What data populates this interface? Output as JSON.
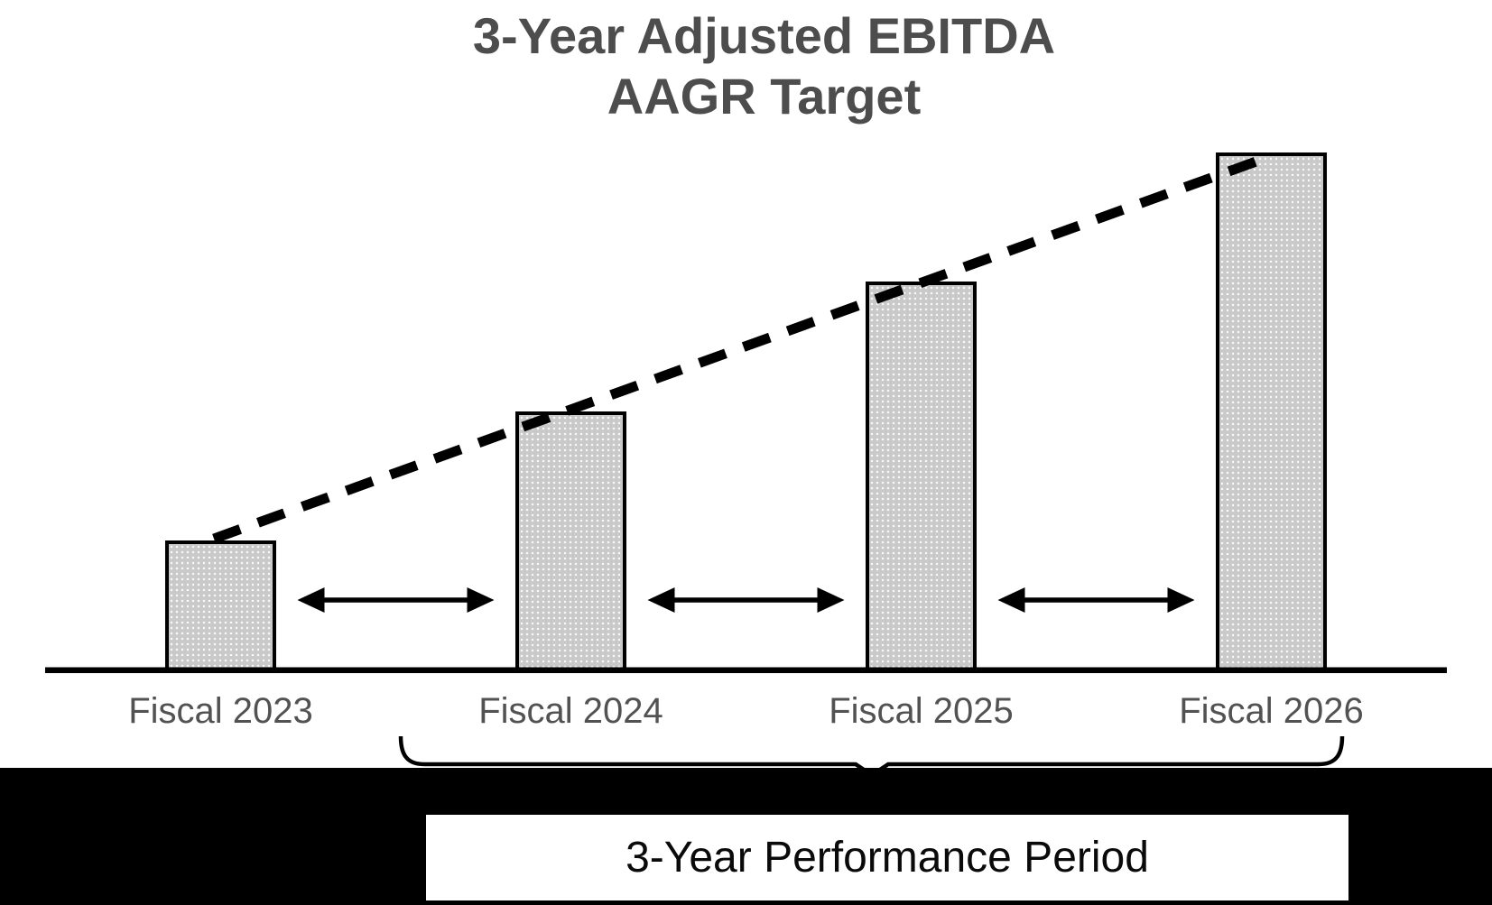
{
  "title": {
    "line1": "3-Year Adjusted EBITDA",
    "line2": "AAGR Target"
  },
  "footer": {
    "performance_period_label": "3-Year Performance Period"
  },
  "chart_data": {
    "type": "bar",
    "title": "3-Year Adjusted EBITDA AAGR Target",
    "categories": [
      "Fiscal 2023",
      "Fiscal 2024",
      "Fiscal 2025",
      "Fiscal 2026"
    ],
    "values": [
      1,
      2,
      3,
      4
    ],
    "units": "relative bar height (schematic chart, no numeric axis shown)",
    "xlabel": "",
    "ylabel": "",
    "grid": false,
    "legend": false,
    "annotations": {
      "trend_line": {
        "style": "dashed",
        "from_bar": "Fiscal 2023",
        "to_bar": "Fiscal 2026",
        "meaning": "AAGR growth trajectory across bar tops"
      },
      "year_gap_arrows": [
        "Fiscal 2023 ↔ Fiscal 2024",
        "Fiscal 2024 ↔ Fiscal 2025",
        "Fiscal 2025 ↔ Fiscal 2026"
      ],
      "bracket": {
        "label": "3-Year Performance Period",
        "spans": "Fiscal 2024 – Fiscal 2026"
      }
    }
  },
  "colors": {
    "bar_fill": "#c9c9c9",
    "bar_border": "#000000",
    "title_text": "#4d4d4d",
    "axis_label_text": "#525252",
    "baseline": "#000000",
    "trend_line": "#000000",
    "arrows": "#000000",
    "bottom_band": "#000000",
    "period_box_bg": "#ffffff",
    "period_box_text": "#0a0a0a"
  }
}
